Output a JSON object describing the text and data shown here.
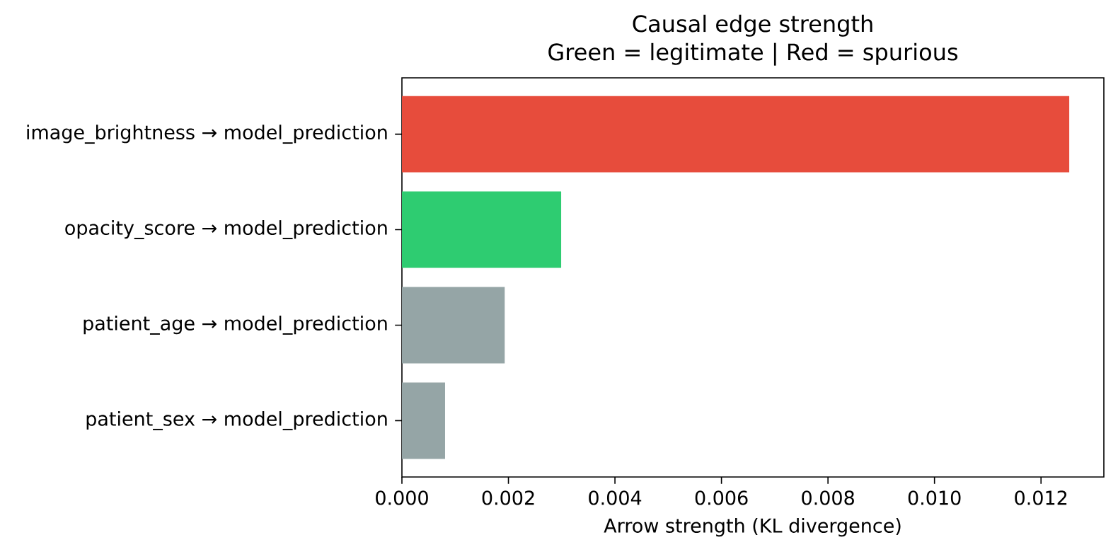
{
  "chart_data": {
    "type": "bar",
    "orientation": "horizontal",
    "title": "Causal edge strength",
    "subtitle": "Green = legitimate | Red = spurious",
    "xlabel": "Arrow strength (KL divergence)",
    "categories": [
      "image_brightness → model_prediction",
      "opacity_score → model_prediction",
      "patient_age → model_prediction",
      "patient_sex → model_prediction"
    ],
    "values": [
      0.01253,
      0.00299,
      0.00193,
      0.00081
    ],
    "colors": [
      "#e74c3c",
      "#2ecc71",
      "#95a5a6",
      "#95a5a6"
    ],
    "xlim": [
      0,
      0.01318
    ],
    "xticks": [
      {
        "value": 0,
        "label": "0.000"
      },
      {
        "value": 0.002,
        "label": "0.002"
      },
      {
        "value": 0.004,
        "label": "0.004"
      },
      {
        "value": 0.006,
        "label": "0.006"
      },
      {
        "value": 0.008,
        "label": "0.008"
      },
      {
        "value": 0.01,
        "label": "0.010"
      },
      {
        "value": 0.012,
        "label": "0.012"
      }
    ],
    "grid": false
  }
}
